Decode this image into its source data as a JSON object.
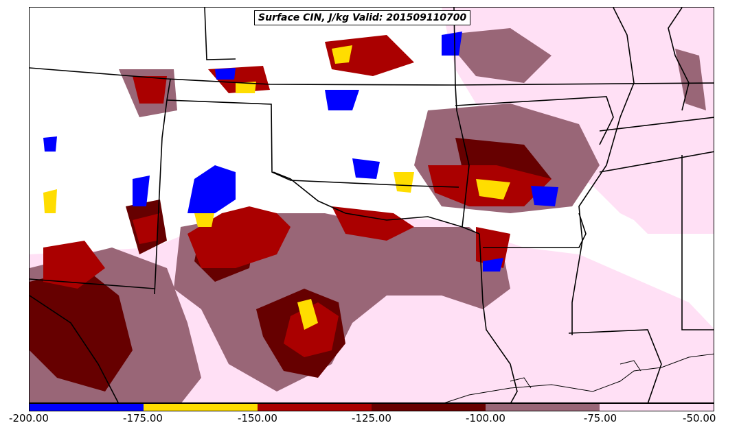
{
  "title": "Surface CIN, J/kg Valid: 201509110700",
  "colorbar": {
    "colors": [
      "#0000ff",
      "#ffdd00",
      "#aa0000",
      "#660000",
      "#996677",
      "#ffe0f5"
    ],
    "ticks": [
      "-200.00",
      "-175.00",
      "-150.00",
      "-125.00",
      "-100.00",
      "-75.00",
      "-50.00"
    ]
  },
  "colors": {
    "blue": "#0000ff",
    "yellow": "#ffdd00",
    "red": "#aa0000",
    "darkred": "#660000",
    "mauve": "#996677",
    "pink": "#ffe0f5",
    "borders": "#000000"
  }
}
